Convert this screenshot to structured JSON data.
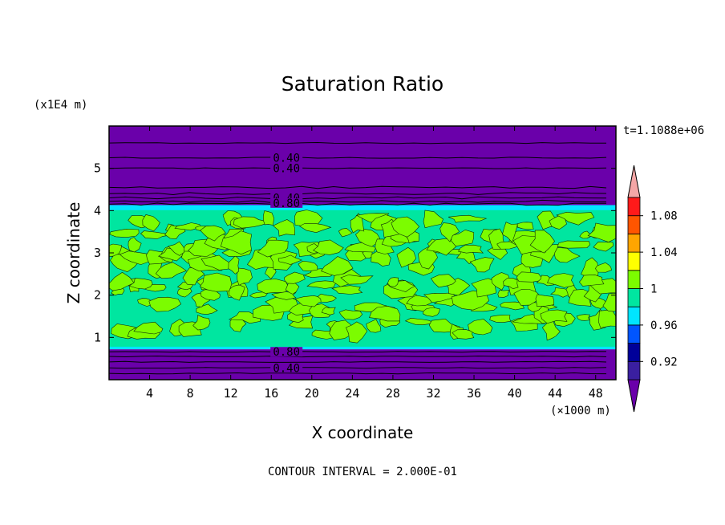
{
  "chart_data": {
    "type": "heatmap",
    "title": "Saturation Ratio",
    "xlabel": "X coordinate",
    "ylabel": "Z coordinate",
    "x_unit_label": "(×1000 m)",
    "y_unit_label": "(x1E4 m)",
    "time_label": "t=1.1088e+06",
    "footer": "CONTOUR INTERVAL = 2.000E-01",
    "xlim": [
      0,
      50
    ],
    "ylim": [
      0,
      6
    ],
    "x_ticks": [
      "4",
      "8",
      "12",
      "16",
      "20",
      "24",
      "28",
      "32",
      "36",
      "40",
      "44",
      "48"
    ],
    "y_ticks": [
      "1",
      "2",
      "3",
      "4",
      "5"
    ],
    "colorbar": {
      "labels": [
        "0.92",
        "0.96",
        "1",
        "1.04",
        "1.08"
      ],
      "colors": [
        "#6a00aa",
        "#3a1fa0",
        "#000099",
        "#0055ff",
        "#00e5ff",
        "#00e6a0",
        "#7cfc00",
        "#ffff00",
        "#ffa500",
        "#ff5500",
        "#ff1a1a",
        "#f4a6a6"
      ]
    },
    "layers": [
      {
        "zmin": 0.0,
        "zmax": 0.72,
        "value_class": "below 0.92",
        "color": "#6a00aa"
      },
      {
        "zmin": 0.72,
        "zmax": 4.1,
        "value_class": "0.96–1.04 (turbulent mixed layer)",
        "color": "#00e6a0"
      },
      {
        "zmin": 4.1,
        "zmax": 6.0,
        "value_class": "below 0.92",
        "color": "#6a00aa"
      }
    ],
    "contour_labels": [
      {
        "text": "0.40",
        "z": 5.25
      },
      {
        "text": "0.40",
        "z": 5.0
      },
      {
        "text": "0.40",
        "z": 4.3
      },
      {
        "text": "0.80",
        "z": 4.18
      },
      {
        "text": "0.80",
        "z": 0.66
      },
      {
        "text": "0.40",
        "z": 0.28
      }
    ],
    "contour_lines_z": [
      0.15,
      0.28,
      0.42,
      0.55,
      0.66,
      4.15,
      4.22,
      4.3,
      4.4,
      4.55,
      5.0,
      5.25,
      5.6
    ]
  }
}
